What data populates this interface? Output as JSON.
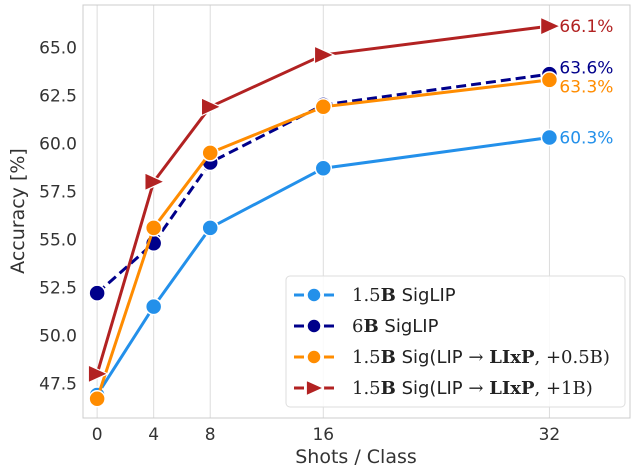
{
  "chart_data": {
    "type": "line",
    "xlabel": "Shots / Class",
    "ylabel": "Accuracy [%]",
    "x": [
      0,
      4,
      8,
      16,
      32
    ],
    "xticks": [
      "0",
      "4",
      "8",
      "16",
      "32"
    ],
    "yticks": [
      "47.5",
      "50.0",
      "52.5",
      "55.0",
      "57.5",
      "60.0",
      "62.5",
      "65.0"
    ],
    "ytick_values": [
      47.5,
      50.0,
      52.5,
      55.0,
      57.5,
      60.0,
      62.5,
      65.0
    ],
    "xlim": [
      -1,
      37.7
    ],
    "ylim": [
      45.7,
      67.2
    ],
    "grid": "vertical",
    "legend_placement": "lower-right",
    "series": [
      {
        "name": "1.5B SigLIP",
        "legend_parts": [
          "1.5",
          "B",
          " SigLIP",
          "",
          "",
          ""
        ],
        "color": "#2390ea",
        "marker": "circle",
        "linestyle": "solid",
        "values": [
          46.9,
          51.5,
          55.6,
          58.7,
          60.3
        ],
        "end_label": "60.3%"
      },
      {
        "name": "6B SigLIP",
        "legend_parts": [
          "6",
          "B",
          " SigLIP",
          "",
          "",
          ""
        ],
        "color": "#00008b",
        "marker": "circle",
        "linestyle": "dashed",
        "values": [
          52.2,
          54.8,
          59.0,
          62.0,
          63.6
        ],
        "end_label": "63.6%"
      },
      {
        "name": "1.5B Sig(LIP→LIxP, +0.5B)",
        "legend_parts": [
          "1.5",
          "B",
          " Sig(LIP",
          " → ",
          "LIxP",
          ", +0.5B)"
        ],
        "color": "#ff8c00",
        "marker": "circle",
        "linestyle": "solid",
        "values": [
          46.7,
          55.6,
          59.5,
          61.9,
          63.3
        ],
        "end_label": "63.3%"
      },
      {
        "name": "1.5B Sig(LIP→LIxP, +1B)",
        "legend_parts": [
          "1.5",
          "B",
          " Sig(LIP",
          " → ",
          "LIxP",
          ", +1B)"
        ],
        "color": "#b22222",
        "marker": "triangle-right",
        "linestyle": "solid",
        "values": [
          48.0,
          58.0,
          61.9,
          64.6,
          66.1
        ],
        "end_label": "66.1%"
      }
    ]
  }
}
